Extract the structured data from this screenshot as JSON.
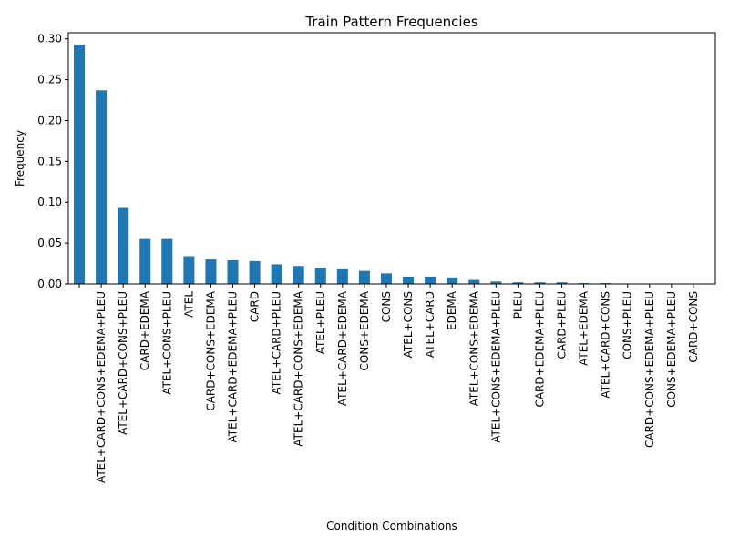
{
  "chart_data": {
    "type": "bar",
    "title": "Train Pattern Frequencies",
    "xlabel": "Condition Combinations",
    "ylabel": "Frequency",
    "ylim": [
      0,
      0.3075
    ],
    "yticks": [
      0.0,
      0.05,
      0.1,
      0.15,
      0.2,
      0.25,
      0.3
    ],
    "ytick_labels": [
      "0.00",
      "0.05",
      "0.10",
      "0.15",
      "0.20",
      "0.25",
      "0.30"
    ],
    "grid": false,
    "bar_color": "#1f77b4",
    "categories": [
      "",
      "ATEL+CARD+CONS+EDEMA+PLEU",
      "ATEL+CARD+CONS+PLEU",
      "CARD+EDEMA",
      "ATEL+CONS+PLEU",
      "ATEL",
      "CARD+CONS+EDEMA",
      "ATEL+CARD+EDEMA+PLEU",
      "CARD",
      "ATEL+CARD+PLEU",
      "ATEL+CARD+CONS+EDEMA",
      "ATEL+PLEU",
      "ATEL+CARD+EDEMA",
      "CONS+EDEMA",
      "CONS",
      "ATEL+CONS",
      "ATEL+CARD",
      "EDEMA",
      "ATEL+CONS+EDEMA",
      "ATEL+CONS+EDEMA+PLEU",
      "PLEU",
      "CARD+EDEMA+PLEU",
      "CARD+PLEU",
      "ATEL+EDEMA",
      "ATEL+CARD+CONS",
      "CONS+PLEU",
      "CARD+CONS+EDEMA+PLEU",
      "CONS+EDEMA+PLEU",
      "CARD+CONS"
    ],
    "values": [
      0.293,
      0.237,
      0.093,
      0.055,
      0.055,
      0.034,
      0.03,
      0.029,
      0.028,
      0.024,
      0.022,
      0.02,
      0.018,
      0.016,
      0.013,
      0.009,
      0.009,
      0.008,
      0.005,
      0.003,
      0.002,
      0.002,
      0.002,
      0.001,
      0.001,
      0.0004,
      0.0003,
      0.0002,
      0.0001
    ]
  }
}
